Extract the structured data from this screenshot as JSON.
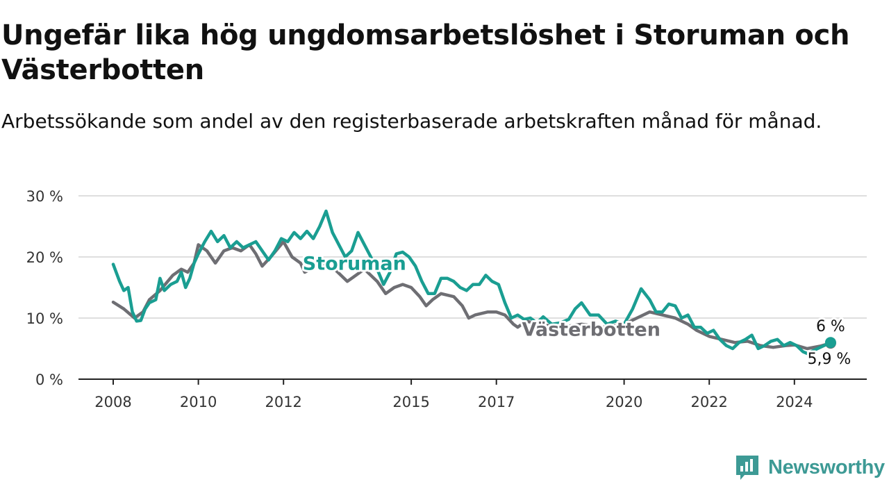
{
  "title": "Ungefär lika hög ungdomsarbetslöshet i Storuman och Västerbotten",
  "subtitle": "Arbetssökande som andel av den registerbaserade arbetskraften månad för månad.",
  "brand": {
    "name": "Newsworthy",
    "color": "#3d9a95",
    "logo_icon": "bar-chart-speech-bubble-icon"
  },
  "chart_data": {
    "type": "line",
    "title": "Ungefär lika hög ungdomsarbetslöshet i Storuman och Västerbotten",
    "subtitle": "Arbetssökande som andel av den registerbaserade arbetskraften månad för månad.",
    "xlabel": "",
    "ylabel": "",
    "ylim": [
      0,
      30
    ],
    "xlim": [
      2008,
      2025.4
    ],
    "yticks": [
      {
        "value": 0,
        "label": "0 %"
      },
      {
        "value": 10,
        "label": "10 %"
      },
      {
        "value": 20,
        "label": "20 %"
      },
      {
        "value": 30,
        "label": "30 %"
      }
    ],
    "xticks": [
      {
        "value": 2008,
        "label": "2008"
      },
      {
        "value": 2010,
        "label": "2010"
      },
      {
        "value": 2012,
        "label": "2012"
      },
      {
        "value": 2015,
        "label": "2015"
      },
      {
        "value": 2017,
        "label": "2017"
      },
      {
        "value": 2020,
        "label": "2020"
      },
      {
        "value": 2022,
        "label": "2022"
      },
      {
        "value": 2024,
        "label": "2024"
      }
    ],
    "grid": true,
    "legend": "inline labels",
    "series": [
      {
        "name": "Västerbotten",
        "color": "#6e6e73",
        "end_label": "5,9 %",
        "points": [
          [
            2008,
            12.6
          ],
          [
            2008.25,
            11.5
          ],
          [
            2008.5,
            10
          ],
          [
            2008.7,
            11
          ],
          [
            2008.85,
            13
          ],
          [
            2009.1,
            14.5
          ],
          [
            2009.4,
            17
          ],
          [
            2009.6,
            18
          ],
          [
            2009.75,
            17.5
          ],
          [
            2009.9,
            19
          ],
          [
            2010.0,
            22
          ],
          [
            2010.2,
            21
          ],
          [
            2010.4,
            19
          ],
          [
            2010.5,
            20
          ],
          [
            2010.6,
            21
          ],
          [
            2010.8,
            21.5
          ],
          [
            2011.0,
            21
          ],
          [
            2011.2,
            22
          ],
          [
            2011.35,
            20.5
          ],
          [
            2011.5,
            18.5
          ],
          [
            2011.7,
            20
          ],
          [
            2012.0,
            22.5
          ],
          [
            2012.2,
            20
          ],
          [
            2012.4,
            19
          ],
          [
            2012.5,
            17.5
          ],
          [
            2012.9,
            19
          ],
          [
            2013.2,
            18
          ],
          [
            2013.5,
            16
          ],
          [
            2013.7,
            17
          ],
          [
            2013.9,
            18
          ],
          [
            2014.2,
            16
          ],
          [
            2014.4,
            14
          ],
          [
            2014.6,
            15
          ],
          [
            2014.8,
            15.5
          ],
          [
            2015.0,
            15
          ],
          [
            2015.2,
            13.5
          ],
          [
            2015.35,
            12
          ],
          [
            2015.5,
            13
          ],
          [
            2015.7,
            14
          ],
          [
            2016.0,
            13.5
          ],
          [
            2016.2,
            12
          ],
          [
            2016.35,
            10
          ],
          [
            2016.5,
            10.5
          ],
          [
            2016.8,
            11
          ],
          [
            2017.0,
            11
          ],
          [
            2017.2,
            10.5
          ],
          [
            2017.4,
            9
          ],
          [
            2017.5,
            8.5
          ],
          [
            2017.7,
            9.5
          ],
          [
            2018.0,
            9
          ],
          [
            2018.5,
            8.5
          ],
          [
            2019.0,
            9
          ],
          [
            2019.5,
            8.5
          ],
          [
            2020.0,
            9
          ],
          [
            2020.3,
            10
          ],
          [
            2020.6,
            11
          ],
          [
            2020.9,
            10.5
          ],
          [
            2021.2,
            10
          ],
          [
            2021.5,
            9
          ],
          [
            2021.7,
            8
          ],
          [
            2022.0,
            7
          ],
          [
            2022.3,
            6.5
          ],
          [
            2022.6,
            6
          ],
          [
            2022.9,
            6.2
          ],
          [
            2023.2,
            5.5
          ],
          [
            2023.5,
            5.2
          ],
          [
            2023.8,
            5.5
          ],
          [
            2024.0,
            5.6
          ],
          [
            2024.3,
            5
          ],
          [
            2024.6,
            5.4
          ],
          [
            2024.85,
            5.9
          ]
        ]
      },
      {
        "name": "Storuman",
        "color": "#1a9e92",
        "end_label": "6 %",
        "points": [
          [
            2008,
            18.8
          ],
          [
            2008.15,
            16
          ],
          [
            2008.25,
            14.5
          ],
          [
            2008.35,
            15
          ],
          [
            2008.45,
            11
          ],
          [
            2008.55,
            9.5
          ],
          [
            2008.65,
            9.6
          ],
          [
            2008.75,
            11.5
          ],
          [
            2008.85,
            12.5
          ],
          [
            2009.0,
            13
          ],
          [
            2009.1,
            16.5
          ],
          [
            2009.2,
            14.5
          ],
          [
            2009.35,
            15.5
          ],
          [
            2009.5,
            16
          ],
          [
            2009.6,
            17.5
          ],
          [
            2009.7,
            15
          ],
          [
            2009.8,
            16.5
          ],
          [
            2009.9,
            19
          ],
          [
            2010.0,
            20.5
          ],
          [
            2010.15,
            22.5
          ],
          [
            2010.3,
            24.2
          ],
          [
            2010.45,
            22.5
          ],
          [
            2010.6,
            23.5
          ],
          [
            2010.75,
            21.5
          ],
          [
            2010.9,
            22.5
          ],
          [
            2011.05,
            21.5
          ],
          [
            2011.2,
            22
          ],
          [
            2011.35,
            22.5
          ],
          [
            2011.5,
            21
          ],
          [
            2011.65,
            19.5
          ],
          [
            2011.8,
            21
          ],
          [
            2011.95,
            23
          ],
          [
            2012.1,
            22.5
          ],
          [
            2012.25,
            24
          ],
          [
            2012.4,
            23
          ],
          [
            2012.55,
            24.2
          ],
          [
            2012.7,
            23
          ],
          [
            2012.85,
            25
          ],
          [
            2013.0,
            27.5
          ],
          [
            2013.15,
            24
          ],
          [
            2013.3,
            22
          ],
          [
            2013.45,
            20
          ],
          [
            2013.6,
            21
          ],
          [
            2013.75,
            24
          ],
          [
            2013.9,
            22
          ],
          [
            2014.05,
            20
          ],
          [
            2014.2,
            18
          ],
          [
            2014.35,
            15.5
          ],
          [
            2014.5,
            17.5
          ],
          [
            2014.65,
            20.5
          ],
          [
            2014.8,
            20.8
          ],
          [
            2014.95,
            20
          ],
          [
            2015.1,
            18.5
          ],
          [
            2015.25,
            16
          ],
          [
            2015.4,
            14
          ],
          [
            2015.55,
            14
          ],
          [
            2015.7,
            16.5
          ],
          [
            2015.85,
            16.5
          ],
          [
            2016.0,
            16
          ],
          [
            2016.15,
            15
          ],
          [
            2016.3,
            14.5
          ],
          [
            2016.45,
            15.5
          ],
          [
            2016.6,
            15.5
          ],
          [
            2016.75,
            17
          ],
          [
            2016.9,
            16
          ],
          [
            2017.05,
            15.5
          ],
          [
            2017.2,
            12.5
          ],
          [
            2017.35,
            10
          ],
          [
            2017.5,
            10.5
          ],
          [
            2017.65,
            9.8
          ],
          [
            2017.8,
            10
          ],
          [
            2017.95,
            9.2
          ],
          [
            2018.1,
            10.2
          ],
          [
            2018.3,
            9
          ],
          [
            2018.5,
            9.2
          ],
          [
            2018.7,
            9.8
          ],
          [
            2018.85,
            11.5
          ],
          [
            2019.0,
            12.5
          ],
          [
            2019.2,
            10.5
          ],
          [
            2019.4,
            10.5
          ],
          [
            2019.6,
            9
          ],
          [
            2019.8,
            9.5
          ],
          [
            2020.0,
            9
          ],
          [
            2020.2,
            11.5
          ],
          [
            2020.4,
            14.8
          ],
          [
            2020.6,
            13
          ],
          [
            2020.75,
            11
          ],
          [
            2020.9,
            11
          ],
          [
            2021.05,
            12.3
          ],
          [
            2021.2,
            12
          ],
          [
            2021.35,
            10
          ],
          [
            2021.5,
            10.5
          ],
          [
            2021.65,
            8.5
          ],
          [
            2021.8,
            8.5
          ],
          [
            2021.95,
            7.5
          ],
          [
            2022.1,
            8
          ],
          [
            2022.25,
            6.5
          ],
          [
            2022.4,
            5.5
          ],
          [
            2022.55,
            5
          ],
          [
            2022.7,
            6
          ],
          [
            2022.85,
            6.5
          ],
          [
            2023.0,
            7.2
          ],
          [
            2023.15,
            5
          ],
          [
            2023.3,
            5.5
          ],
          [
            2023.45,
            6.2
          ],
          [
            2023.6,
            6.5
          ],
          [
            2023.75,
            5.5
          ],
          [
            2023.9,
            6
          ],
          [
            2024.05,
            5.5
          ],
          [
            2024.2,
            4.5
          ],
          [
            2024.3,
            4.2
          ],
          [
            2024.85,
            6
          ]
        ]
      }
    ],
    "annotations": [
      {
        "text": "Storuman",
        "series": "Storuman"
      },
      {
        "text": "Västerbotten",
        "series": "Västerbotten"
      }
    ]
  }
}
